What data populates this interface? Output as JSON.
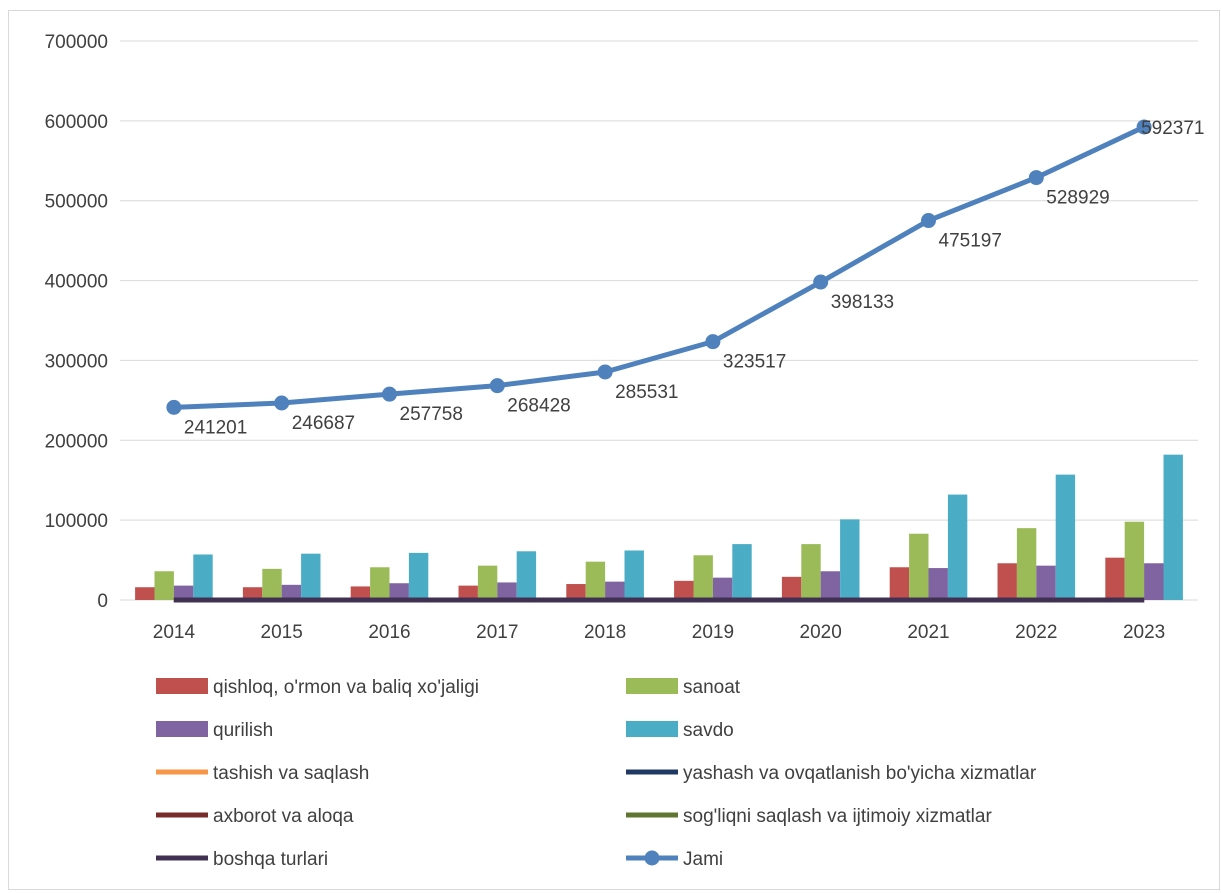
{
  "chart_data": {
    "type": "bar",
    "categories": [
      "2014",
      "2015",
      "2016",
      "2017",
      "2018",
      "2019",
      "2020",
      "2021",
      "2022",
      "2023"
    ],
    "ylim": [
      0,
      700000
    ],
    "yticks": [
      "0",
      "100000",
      "200000",
      "300000",
      "400000",
      "500000",
      "600000",
      "700000"
    ],
    "grid": true,
    "legend_position": "bottom",
    "bar_series": [
      {
        "name": "qishloq, o'rmon va baliq xo'jaligi",
        "color": "#c0504d",
        "values": [
          16000,
          16000,
          17000,
          18000,
          20000,
          24000,
          29000,
          41000,
          46000,
          53000
        ]
      },
      {
        "name": "sanoat",
        "color": "#9bbb59",
        "values": [
          36000,
          39000,
          41000,
          43000,
          48000,
          56000,
          70000,
          83000,
          90000,
          98000
        ]
      },
      {
        "name": "qurilish",
        "color": "#8064a2",
        "values": [
          18000,
          19000,
          21000,
          22000,
          23000,
          28000,
          36000,
          40000,
          43000,
          46000
        ]
      },
      {
        "name": "savdo",
        "color": "#4bacc6",
        "values": [
          57000,
          58000,
          59000,
          61000,
          62000,
          70000,
          101000,
          132000,
          157000,
          182000
        ]
      }
    ],
    "line_series": [
      {
        "name": "tashish va saqlash",
        "color": "#f79646",
        "values": [
          0,
          0,
          0,
          0,
          0,
          0,
          0,
          0,
          0,
          0
        ]
      },
      {
        "name": "yashash va ovqatlanish bo'yicha xizmatlar",
        "color": "#1f3864",
        "values": [
          0,
          0,
          0,
          0,
          0,
          0,
          0,
          0,
          0,
          0
        ]
      },
      {
        "name": "axborot va aloqa",
        "color": "#772c2a",
        "values": [
          0,
          0,
          0,
          0,
          0,
          0,
          0,
          0,
          0,
          0
        ]
      },
      {
        "name": "sog'liqni saqlash va ijtimoiy xizmatlar",
        "color": "#5f7530",
        "values": [
          0,
          0,
          0,
          0,
          0,
          0,
          0,
          0,
          0,
          0
        ]
      },
      {
        "name": "boshqa turlari",
        "color": "#403152",
        "values": [
          0,
          0,
          0,
          0,
          0,
          0,
          0,
          0,
          0,
          0
        ]
      }
    ],
    "total_series": {
      "name": "Jami",
      "color": "#4f81bd",
      "values": [
        241201,
        246687,
        257758,
        268428,
        285531,
        323517,
        398133,
        475197,
        528929,
        592371
      ],
      "labels": [
        "241201",
        "246687",
        "257758",
        "268428",
        "285531",
        "323517",
        "398133",
        "475197",
        "528929",
        "592371"
      ]
    },
    "legend": [
      {
        "name": "qishloq, o'rmon va baliq xo'jaligi",
        "kind": "bar",
        "color": "#c0504d"
      },
      {
        "name": "sanoat",
        "kind": "bar",
        "color": "#9bbb59"
      },
      {
        "name": "qurilish",
        "kind": "bar",
        "color": "#8064a2"
      },
      {
        "name": "savdo",
        "kind": "bar",
        "color": "#4bacc6"
      },
      {
        "name": "tashish va saqlash",
        "kind": "line",
        "color": "#f79646"
      },
      {
        "name": "yashash va ovqatlanish bo'yicha xizmatlar",
        "kind": "line",
        "color": "#1f3864"
      },
      {
        "name": "axborot va aloqa",
        "kind": "line",
        "color": "#772c2a"
      },
      {
        "name": "sog'liqni saqlash va ijtimoiy xizmatlar",
        "kind": "line",
        "color": "#5f7530"
      },
      {
        "name": "boshqa turlari",
        "kind": "line",
        "color": "#403152"
      },
      {
        "name": "Jami",
        "kind": "line-marker",
        "color": "#4f81bd"
      }
    ]
  }
}
